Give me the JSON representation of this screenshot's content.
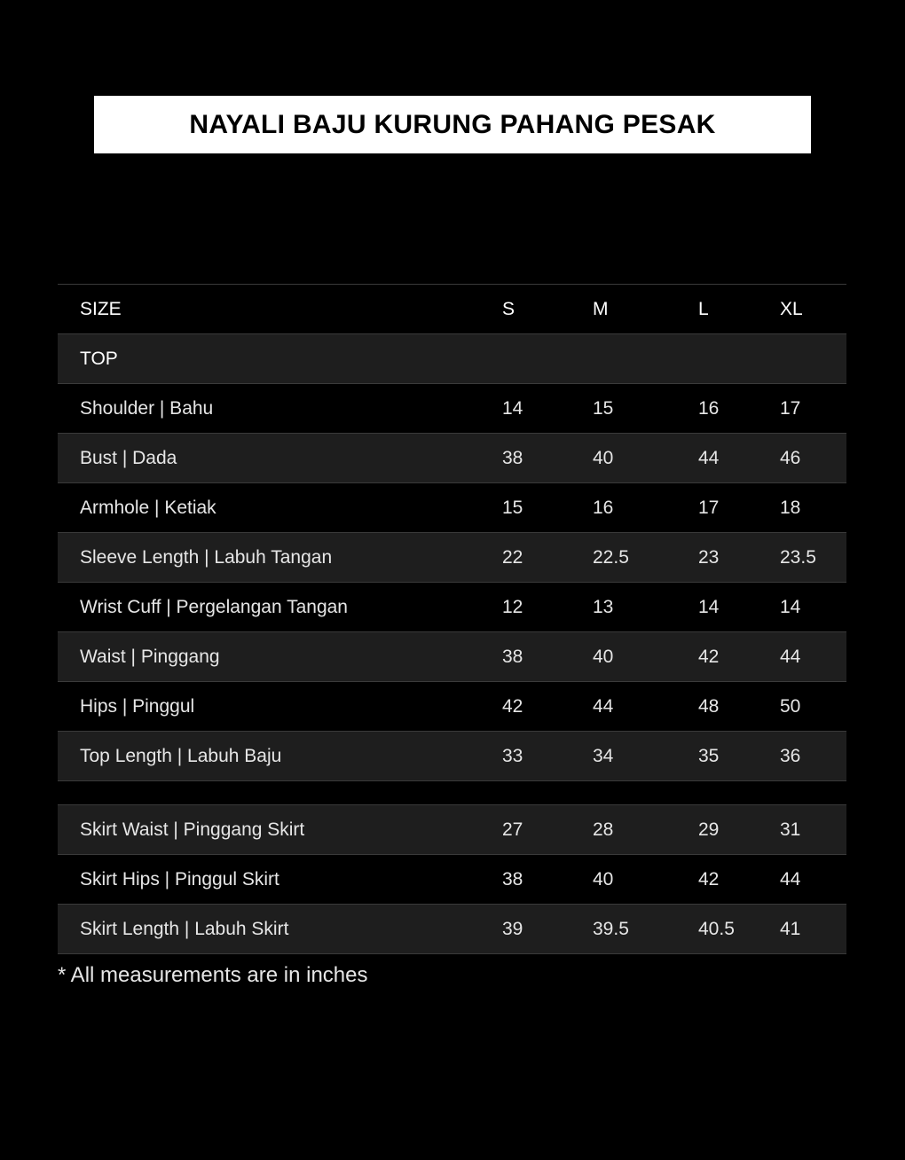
{
  "title": "NAYALI BAJU KURUNG PAHANG PESAK",
  "header": [
    "SIZE",
    "S",
    "M",
    "L",
    "XL"
  ],
  "section_top": "TOP",
  "top_rows": [
    [
      "Shoulder | Bahu",
      "14",
      "15",
      "16",
      "17"
    ],
    [
      "Bust | Dada",
      "38",
      "40",
      "44",
      "46"
    ],
    [
      "Armhole | Ketiak",
      "15",
      "16",
      "17",
      "18"
    ],
    [
      "Sleeve Length | Labuh Tangan",
      "22",
      "22.5",
      "23",
      "23.5"
    ],
    [
      "Wrist Cuff | Pergelangan Tangan",
      "12",
      "13",
      "14",
      "14"
    ],
    [
      "Waist | Pinggang",
      "38",
      "40",
      "42",
      "44"
    ],
    [
      "Hips | Pinggul",
      "42",
      "44",
      "48",
      "50"
    ],
    [
      "Top Length | Labuh Baju",
      "33",
      "34",
      "35",
      "36"
    ]
  ],
  "skirt_rows": [
    [
      "Skirt Waist | Pinggang Skirt",
      "27",
      "28",
      "29",
      "31"
    ],
    [
      "Skirt Hips | Pinggul Skirt",
      "38",
      "40",
      "42",
      "44"
    ],
    [
      "Skirt Length | Labuh Skirt",
      "39",
      "39.5",
      "40.5",
      "41"
    ]
  ],
  "note": "* All measurements are in inches"
}
